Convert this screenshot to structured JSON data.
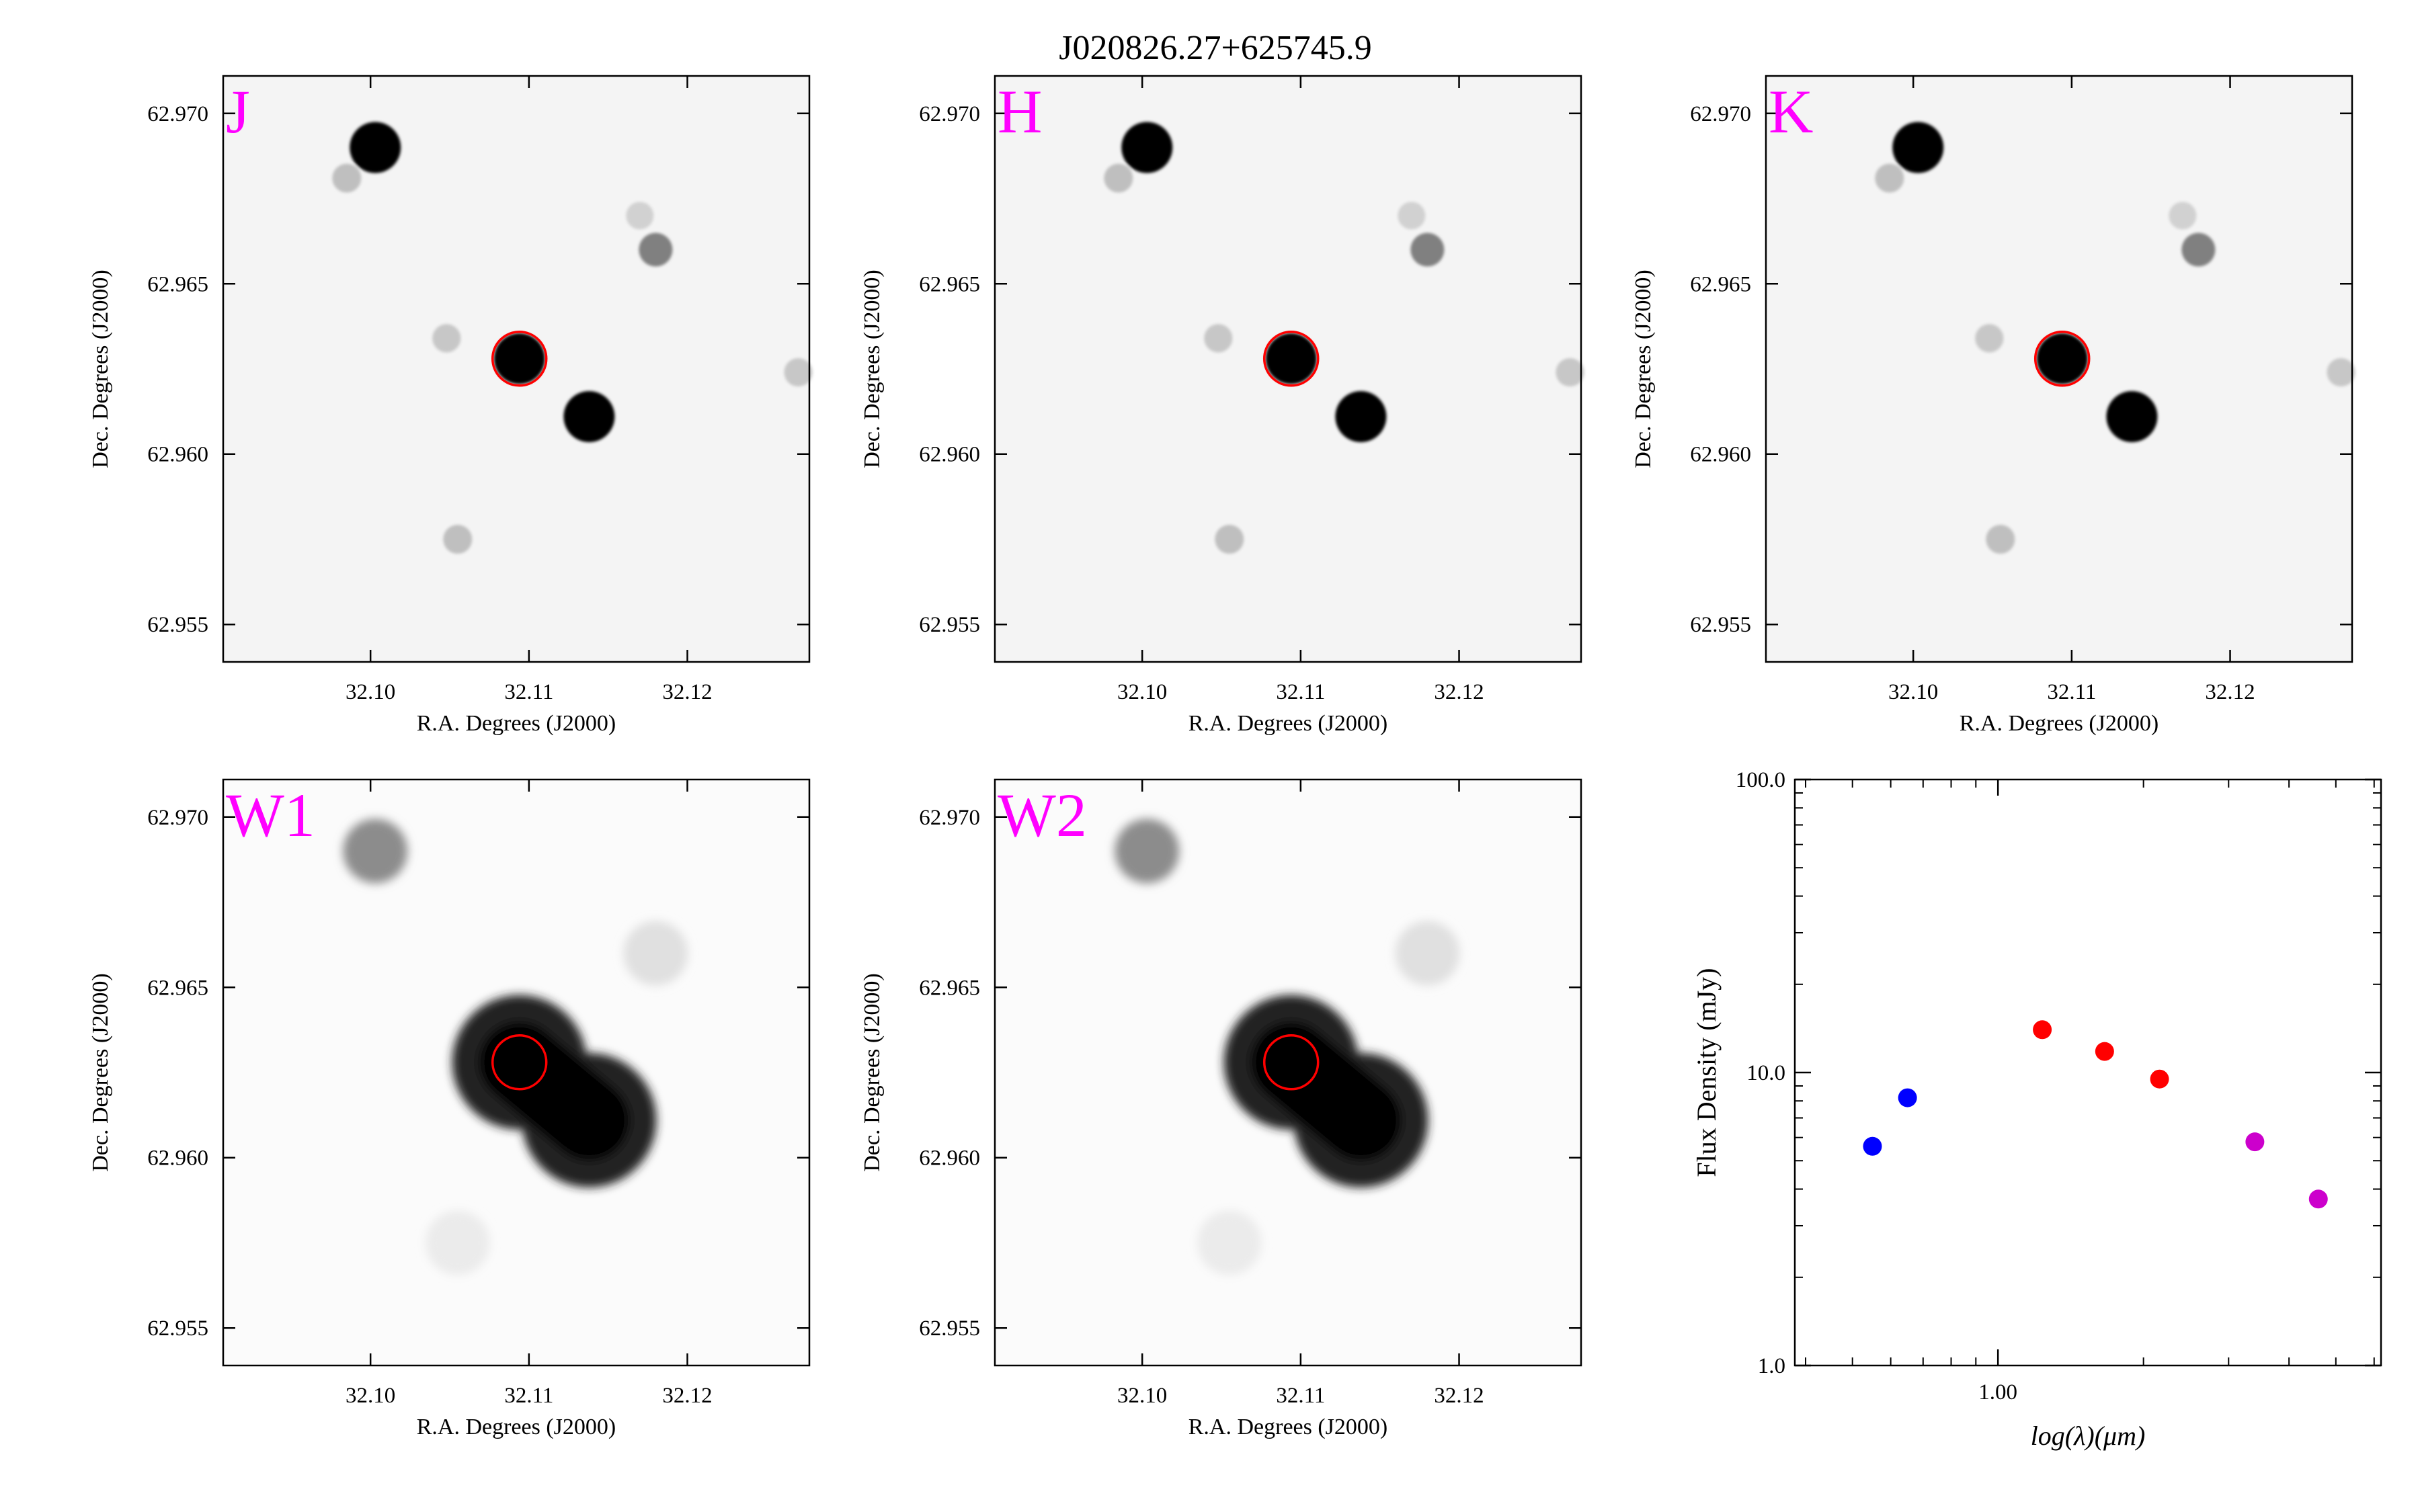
{
  "figure": {
    "title": "J020826.27+625745.9"
  },
  "cutouts": [
    {
      "band": "J",
      "xlabel": "R.A. Degrees (J2000)",
      "ylabel": "Dec. Degrees (J2000)",
      "x_ticks": [
        "32.10",
        "32.11",
        "32.12"
      ],
      "y_ticks": [
        "62.970",
        "62.965",
        "62.960",
        "62.955"
      ],
      "style": "sharp"
    },
    {
      "band": "H",
      "xlabel": "R.A. Degrees (J2000)",
      "ylabel": "Dec. Degrees (J2000)",
      "x_ticks": [
        "32.10",
        "32.11",
        "32.12"
      ],
      "y_ticks": [
        "62.970",
        "62.965",
        "62.960",
        "62.955"
      ],
      "style": "sharp"
    },
    {
      "band": "K",
      "xlabel": "R.A. Degrees (J2000)",
      "ylabel": "Dec. Degrees (J2000)",
      "x_ticks": [
        "32.10",
        "32.11",
        "32.12"
      ],
      "y_ticks": [
        "62.970",
        "62.965",
        "62.960",
        "62.955"
      ],
      "style": "sharp"
    },
    {
      "band": "W1",
      "xlabel": "R.A. Degrees (J2000)",
      "ylabel": "Dec. Degrees (J2000)",
      "x_ticks": [
        "32.10",
        "32.11",
        "32.12"
      ],
      "y_ticks": [
        "62.970",
        "62.965",
        "62.960",
        "62.955"
      ],
      "style": "blurred"
    },
    {
      "band": "W2",
      "xlabel": "R.A. Degrees (J2000)",
      "ylabel": "Dec. Degrees (J2000)",
      "x_ticks": [
        "32.10",
        "32.11",
        "32.12"
      ],
      "y_ticks": [
        "62.970",
        "62.965",
        "62.960",
        "62.955"
      ],
      "style": "blurred"
    }
  ],
  "cutout_axes": {
    "ra_range": [
      32.0907,
      32.1277
    ],
    "dec_range": [
      62.9539,
      62.9711
    ],
    "target": {
      "ra": 32.1094,
      "dec": 62.9628
    }
  },
  "sources": [
    {
      "ra": 32.1003,
      "dec": 62.969,
      "strength_nir": 1.0,
      "strength_wise": 0.45
    },
    {
      "ra": 32.1094,
      "dec": 62.9628,
      "strength_nir": 1.0,
      "strength_wise": 1.0
    },
    {
      "ra": 32.1138,
      "dec": 62.9611,
      "strength_nir": 1.0,
      "strength_wise": 1.0
    },
    {
      "ra": 32.118,
      "dec": 62.966,
      "strength_nir": 0.5,
      "strength_wise": 0.12
    },
    {
      "ra": 32.0985,
      "dec": 62.9681,
      "strength_nir": 0.25,
      "strength_wise": 0.0
    },
    {
      "ra": 32.1048,
      "dec": 62.9634,
      "strength_nir": 0.22,
      "strength_wise": 0.0
    },
    {
      "ra": 32.1055,
      "dec": 62.9575,
      "strength_nir": 0.25,
      "strength_wise": 0.08
    },
    {
      "ra": 32.127,
      "dec": 62.9624,
      "strength_nir": 0.22,
      "strength_wise": 0.0
    },
    {
      "ra": 32.117,
      "dec": 62.967,
      "strength_nir": 0.18,
      "strength_wise": 0.0
    }
  ],
  "chart_data": {
    "type": "scatter",
    "title": "",
    "xlabel": "log(λ)(μm)",
    "ylabel": "Flux Density (mJy)",
    "xscale": "log",
    "yscale": "log",
    "xlim": [
      0.38,
      6.2
    ],
    "ylim": [
      1.0,
      100.0
    ],
    "x_tick_labels": [
      "1.00"
    ],
    "y_tick_labels": [
      "1.0",
      "10.0",
      "100.0"
    ],
    "series": [
      {
        "color": "#0000ff",
        "x": [
          0.55,
          0.65
        ],
        "y": [
          5.6,
          8.2
        ]
      },
      {
        "color": "#ff0000",
        "x": [
          1.235,
          1.662,
          2.159
        ],
        "y": [
          14.0,
          11.8,
          9.5
        ]
      },
      {
        "color": "#cc00cc",
        "x": [
          3.4,
          4.6
        ],
        "y": [
          5.8,
          3.7
        ]
      }
    ]
  }
}
